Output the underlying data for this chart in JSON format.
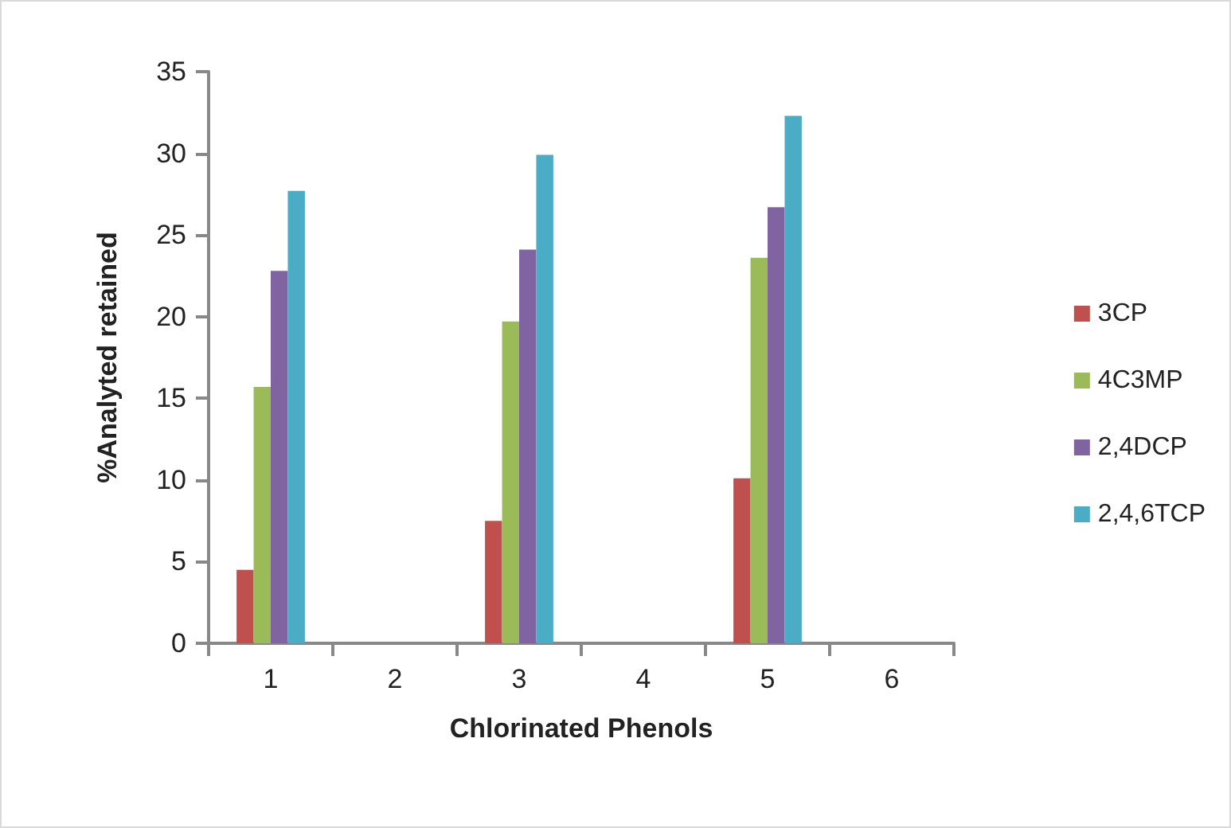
{
  "chart_data": {
    "type": "bar",
    "xlabel": "Chlorinated Phenols",
    "ylabel": "%Analyted retained",
    "categories": [
      "1",
      "2",
      "3",
      "4",
      "5",
      "6"
    ],
    "series": [
      {
        "name": "3CP",
        "color": "#c0504d",
        "values": [
          4.5,
          null,
          7.5,
          null,
          10.1,
          null
        ]
      },
      {
        "name": "4C3MP",
        "color": "#9bbb59",
        "values": [
          15.7,
          null,
          19.7,
          null,
          23.6,
          null
        ]
      },
      {
        "name": "2,4DCP",
        "color": "#8064a2",
        "values": [
          22.8,
          null,
          24.1,
          null,
          26.7,
          null
        ]
      },
      {
        "name": "2,4,6TCP",
        "color": "#4bacc6",
        "values": [
          27.7,
          null,
          29.9,
          null,
          32.3,
          null
        ]
      }
    ],
    "ylim": [
      0,
      35
    ],
    "yticks": [
      0,
      5,
      10,
      15,
      20,
      25,
      30,
      35
    ],
    "grid": false,
    "legend": "right"
  }
}
